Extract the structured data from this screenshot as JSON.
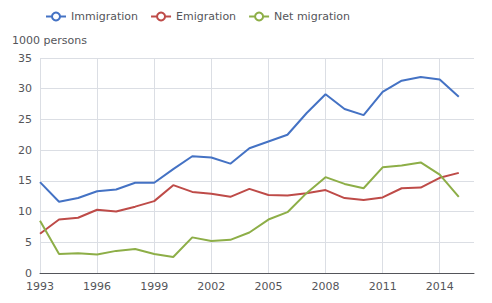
{
  "chart_data": {
    "type": "line",
    "x": [
      1993,
      1994,
      1995,
      1996,
      1997,
      1998,
      1999,
      2000,
      2001,
      2002,
      2003,
      2004,
      2005,
      2006,
      2007,
      2008,
      2009,
      2010,
      2011,
      2012,
      2013,
      2014,
      2015
    ],
    "series": [
      {
        "name": "Immigration",
        "color": "#4472C4",
        "values": [
          14.8,
          11.6,
          12.2,
          13.3,
          13.6,
          14.7,
          14.7,
          16.9,
          19.0,
          18.8,
          17.8,
          20.3,
          21.4,
          22.5,
          26.0,
          29.1,
          26.7,
          25.7,
          29.5,
          31.3,
          31.9,
          31.5,
          28.7
        ]
      },
      {
        "name": "Emigration",
        "color": "#BE4B48",
        "values": [
          6.4,
          8.7,
          9.0,
          10.3,
          10.0,
          10.8,
          11.7,
          14.3,
          13.2,
          12.9,
          12.4,
          13.7,
          12.7,
          12.6,
          13.0,
          13.5,
          12.2,
          11.9,
          12.3,
          13.8,
          13.9,
          15.5,
          16.3
        ]
      },
      {
        "name": "Net migration",
        "color": "#8DAE47",
        "values": [
          8.5,
          3.1,
          3.2,
          3.0,
          3.6,
          3.9,
          3.1,
          2.6,
          5.8,
          5.2,
          5.4,
          6.6,
          8.7,
          9.9,
          13.0,
          15.6,
          14.5,
          13.8,
          17.2,
          17.5,
          18.0,
          16.0,
          12.4
        ]
      }
    ],
    "ylabel": "1000 persons",
    "xlim": [
      1993,
      2015.8
    ],
    "xticks": [
      1993,
      1996,
      1999,
      2002,
      2005,
      2008,
      2011,
      2014
    ],
    "ylim": [
      0,
      35
    ],
    "yticks": [
      0,
      5,
      10,
      15,
      20,
      25,
      30,
      35
    ],
    "grid": true,
    "legend": "upper left"
  }
}
